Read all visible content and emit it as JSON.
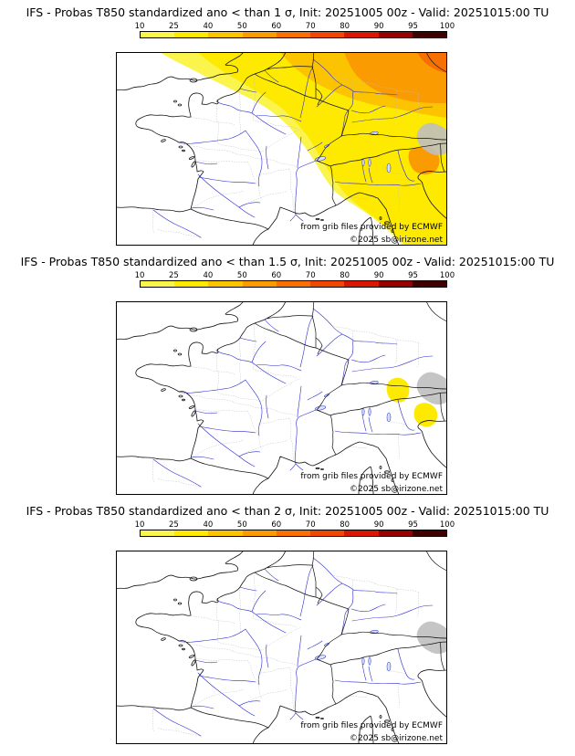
{
  "page": {
    "background_color": "#ffffff"
  },
  "colorbar": {
    "ticks": [
      "10",
      "25",
      "40",
      "50",
      "60",
      "70",
      "80",
      "90",
      "95",
      "100"
    ],
    "segment_colors": [
      "#fbf44c",
      "#fdea00",
      "#fcc400",
      "#fb9b02",
      "#f77004",
      "#f04703",
      "#d81802",
      "#970000",
      "#3f0000"
    ]
  },
  "map": {
    "credit": "from grib files provided by ECMWF",
    "copyright": "©2025 sb@irizone.net",
    "river_color": "#2a2ad0",
    "coast_color": "#111111",
    "admin_color": "#bdbdbd",
    "terrain_mask_color": "#bfbfbf",
    "lake_fill": "#d6e2f8"
  },
  "panels": [
    {
      "title": "IFS - Probas T850  standardized ano < than 1 σ, Init: 20251005 00z - Valid: 20251015:00 TU",
      "overlay": "sigma1"
    },
    {
      "title": "IFS - Probas T850  standardized ano < than 1.5 σ, Init: 20251005 00z - Valid: 20251015:00 TU",
      "overlay": "sigma15"
    },
    {
      "title": "IFS - Probas T850  standardized ano < than 2 σ, Init: 20251005 00z - Valid: 20251015:00 TU",
      "overlay": "sigma2"
    }
  ]
}
